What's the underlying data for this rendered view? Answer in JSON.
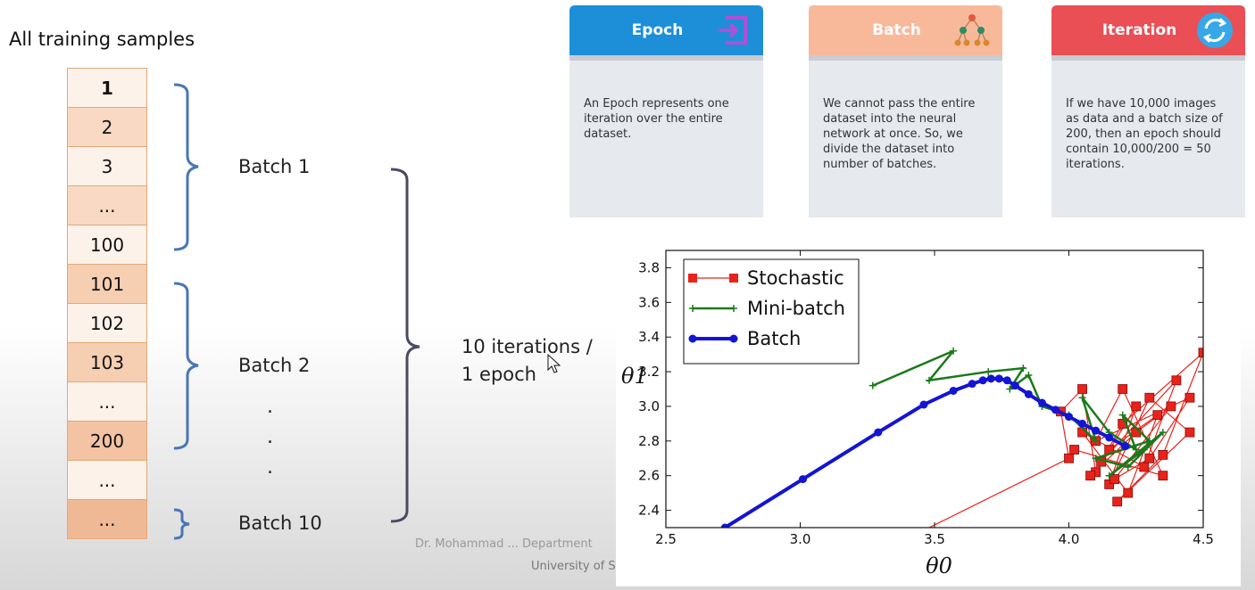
{
  "left_panel": {
    "title": "All training samples",
    "samples": [
      "1",
      "2",
      "3",
      "...",
      "100",
      "101",
      "102",
      "103",
      "...",
      "200",
      "...",
      "..."
    ],
    "batch_labels": [
      "Batch 1",
      "Batch 2",
      "Batch 10"
    ],
    "ellipsis_dots": [
      ".",
      ".",
      "."
    ],
    "iterations_line1": "10 iterations /",
    "iterations_line2": "1 epoch"
  },
  "cards": [
    {
      "title": "Epoch",
      "color": "#1c8fd8",
      "icon": "enter-arrow-icon",
      "text": "An Epoch represents one iteration over the entire dataset."
    },
    {
      "title": "Batch",
      "color": "#f8b99b",
      "icon": "tree-nodes-icon",
      "text": "We cannot pass the entire dataset into the neural network at once. So, we divide the dataset into number of batches."
    },
    {
      "title": "Iteration",
      "color": "#ea4f55",
      "icon": "refresh-cycle-icon",
      "text": "If we have 10,000 images as data and a batch size of 200, then an epoch should contain 10,000/200 = 50 iterations."
    }
  ],
  "footer": {
    "line1": "Dr. Mohammad ... Department",
    "line2": "University of S"
  },
  "chart_data": {
    "type": "line",
    "xlabel": "θ0",
    "ylabel": "θ1",
    "xlim": [
      2.5,
      4.5
    ],
    "ylim": [
      2.3,
      3.9
    ],
    "xticks": [
      "2.5",
      "3.0",
      "3.5",
      "4.0",
      "4.5"
    ],
    "yticks": [
      "2.4",
      "2.6",
      "2.8",
      "3.0",
      "3.2",
      "3.4",
      "3.6",
      "3.8"
    ],
    "legend_position": "top-left",
    "series": [
      {
        "name": "Stochastic",
        "color": "#e8231b",
        "marker": "square",
        "points": [
          [
            3.22,
            2.1
          ],
          [
            4.0,
            2.7
          ],
          [
            3.97,
            2.97
          ],
          [
            4.05,
            3.1
          ],
          [
            4.1,
            2.62
          ],
          [
            4.25,
            3.0
          ],
          [
            4.15,
            2.55
          ],
          [
            4.3,
            3.05
          ],
          [
            4.45,
            2.85
          ],
          [
            4.18,
            2.45
          ],
          [
            4.35,
            2.72
          ],
          [
            4.5,
            3.31
          ],
          [
            4.2,
            2.9
          ],
          [
            4.12,
            2.68
          ],
          [
            4.4,
            3.15
          ],
          [
            4.28,
            2.65
          ],
          [
            4.05,
            2.85
          ],
          [
            4.22,
            2.5
          ],
          [
            4.33,
            2.95
          ],
          [
            4.15,
            2.75
          ],
          [
            4.08,
            2.6
          ],
          [
            4.25,
            2.85
          ],
          [
            4.38,
            3.0
          ],
          [
            4.17,
            2.58
          ],
          [
            4.3,
            2.7
          ],
          [
            4.45,
            3.05
          ],
          [
            4.1,
            2.8
          ],
          [
            4.2,
            3.1
          ],
          [
            4.35,
            2.6
          ],
          [
            4.02,
            2.75
          ]
        ]
      },
      {
        "name": "Mini-batch",
        "color": "#1a7a1a",
        "marker": "plus",
        "points": [
          [
            3.27,
            3.12
          ],
          [
            3.57,
            3.32
          ],
          [
            3.48,
            3.15
          ],
          [
            3.7,
            3.2
          ],
          [
            3.83,
            3.22
          ],
          [
            3.78,
            3.1
          ],
          [
            3.85,
            3.18
          ],
          [
            3.9,
            3.0
          ],
          [
            4.0,
            2.95
          ],
          [
            4.1,
            2.8
          ],
          [
            4.05,
            3.05
          ],
          [
            4.15,
            2.85
          ],
          [
            4.25,
            2.75
          ],
          [
            4.2,
            2.95
          ],
          [
            4.3,
            2.8
          ],
          [
            4.1,
            2.7
          ],
          [
            4.22,
            2.65
          ],
          [
            4.35,
            2.85
          ],
          [
            4.15,
            2.6
          ],
          [
            4.28,
            2.75
          ]
        ]
      },
      {
        "name": "Batch",
        "color": "#1414d4",
        "marker": "circle",
        "points": [
          [
            2.72,
            2.3
          ],
          [
            3.01,
            2.58
          ],
          [
            3.29,
            2.85
          ],
          [
            3.46,
            3.01
          ],
          [
            3.57,
            3.09
          ],
          [
            3.64,
            3.13
          ],
          [
            3.68,
            3.15
          ],
          [
            3.71,
            3.16
          ],
          [
            3.74,
            3.16
          ],
          [
            3.77,
            3.15
          ],
          [
            3.8,
            3.12
          ],
          [
            3.85,
            3.07
          ],
          [
            3.9,
            3.02
          ],
          [
            3.95,
            2.98
          ],
          [
            4.0,
            2.94
          ],
          [
            4.05,
            2.9
          ],
          [
            4.1,
            2.86
          ],
          [
            4.15,
            2.82
          ],
          [
            4.21,
            2.77
          ]
        ]
      }
    ]
  }
}
